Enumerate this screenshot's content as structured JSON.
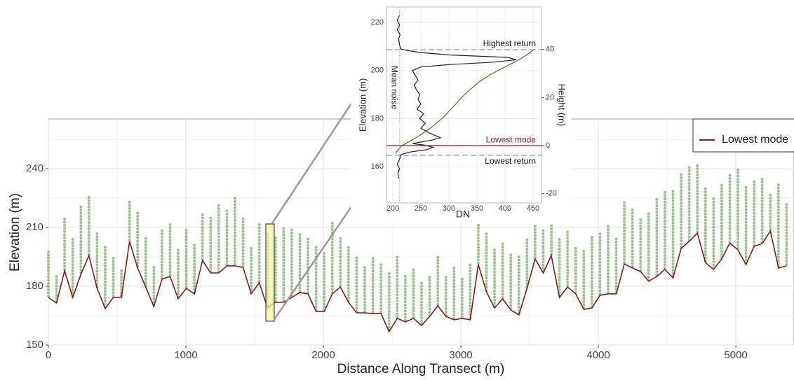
{
  "chart_data": [
    {
      "type": "line",
      "xlabel": "Distance Along Transect (m)",
      "ylabel": "Elevation (m)",
      "xlim": [
        0,
        5423
      ],
      "ylim": [
        150,
        265.4
      ],
      "xticks": [
        0,
        1000,
        2000,
        3000,
        4000,
        5000
      ],
      "yticks": [
        150,
        180,
        210,
        240
      ],
      "grid": true,
      "legend": "upper right",
      "x": [
        0,
        59,
        118,
        177,
        236,
        295,
        354,
        413,
        472,
        531,
        590,
        649,
        708,
        767,
        826,
        885,
        944,
        1003,
        1062,
        1121,
        1180,
        1239,
        1298,
        1357,
        1416,
        1475,
        1534,
        1593,
        1652,
        1711,
        1770,
        1829,
        1888,
        1947,
        2006,
        2065,
        2124,
        2183,
        2242,
        2301,
        2360,
        2419,
        2478,
        2537,
        2596,
        2655,
        2714,
        2773,
        2832,
        2891,
        2950,
        3009,
        3068,
        3127,
        3186,
        3245,
        3304,
        3363,
        3422,
        3481,
        3540,
        3599,
        3658,
        3717,
        3776,
        3835,
        3894,
        3953,
        4012,
        4071,
        4130,
        4189,
        4248,
        4307,
        4366,
        4425,
        4484,
        4543,
        4602,
        4661,
        4720,
        4779,
        4838,
        4897,
        4956,
        5015,
        5074,
        5133,
        5192,
        5251,
        5310,
        5369
      ],
      "series": [
        {
          "name": "Lowest mode",
          "color": "#7b1e22",
          "values": [
            174.3,
            171.4,
            187.9,
            174.3,
            186.1,
            195.7,
            178.9,
            168.6,
            174.3,
            174.3,
            202.9,
            189.3,
            179.6,
            169.6,
            183.6,
            185,
            173.6,
            178.9,
            176.1,
            193.2,
            186.8,
            186.8,
            190.4,
            190.4,
            189.6,
            176.1,
            181.8,
            168.9,
            171.8,
            171.8,
            174.3,
            176.8,
            176.1,
            167.1,
            167.1,
            176.1,
            179.6,
            171.8,
            166.4,
            166.4,
            166.1,
            166.1,
            156.8,
            163.6,
            161.8,
            163.6,
            160,
            164.6,
            170,
            164.6,
            162.9,
            163.6,
            162.9,
            191.1,
            177.1,
            168.9,
            173.6,
            167.9,
            165.4,
            178.9,
            193.9,
            186.8,
            195.7,
            174.3,
            179.6,
            176.1,
            168.2,
            168.9,
            175.4,
            176.1,
            176.1,
            191.4,
            189.3,
            187.5,
            182.5,
            185,
            188.6,
            184.3,
            199.3,
            202.9,
            207.1,
            192.1,
            188.6,
            193.9,
            202.1,
            198.6,
            191.1,
            200.4,
            201.8,
            208.2,
            189.3,
            190.4
          ]
        }
      ],
      "returns": {
        "color": "#4f8a38",
        "top": [
          198,
          185,
          215,
          205,
          222,
          226,
          208,
          200,
          195,
          188,
          224,
          218,
          205,
          190,
          210,
          212,
          200,
          210,
          202,
          218,
          215,
          222,
          220,
          225,
          216,
          200,
          212,
          208,
          205,
          210,
          210,
          208,
          205,
          200,
          198,
          213,
          205,
          200,
          195,
          190,
          195,
          192,
          188,
          196,
          186,
          190,
          182,
          185,
          195,
          186,
          190,
          184,
          192,
          212,
          208,
          200,
          202,
          196,
          196,
          205,
          212,
          210,
          212,
          205,
          208,
          200,
          198,
          206,
          208,
          212,
          205,
          224,
          220,
          215,
          218,
          225,
          228,
          230,
          238,
          242,
          243,
          230,
          226,
          232,
          238,
          240,
          232,
          234,
          236,
          228,
          232,
          222
        ]
      }
    },
    {
      "type": "profile",
      "xlabel": "DN",
      "ylabel": "Elevation (m)",
      "y2label": "Height (m)",
      "xlim": [
        188.75,
        465
      ],
      "ylim": [
        144.8,
        226.5
      ],
      "y2lim": [
        -23.9,
        57.7
      ],
      "xticks": [
        200,
        250,
        300,
        350,
        400,
        450
      ],
      "yticks": [
        160,
        180,
        200,
        220
      ],
      "y2ticks": [
        -20,
        0,
        20,
        40
      ],
      "grid": true,
      "lines": [
        {
          "color": "#222222",
          "x": [
            212,
            208,
            212,
            208,
            213,
            210,
            212,
            214,
            222,
            250,
            300,
            405,
            420,
            380,
            300,
            250,
            235,
            240,
            245,
            238,
            242,
            248,
            245,
            250,
            243,
            255,
            248,
            258,
            250,
            265,
            285,
            270,
            245,
            235,
            255,
            272,
            260,
            230,
            215,
            212,
            208,
            212,
            209,
            211
          ],
          "y": [
            223,
            221,
            219,
            217,
            215,
            213,
            211,
            209,
            208.5,
            207.5,
            206.5,
            205.5,
            204.5,
            203.5,
            202.5,
            201.5,
            200,
            198,
            196,
            194,
            192,
            190,
            188,
            186,
            184,
            182,
            180,
            178,
            176,
            174,
            172,
            171,
            170,
            169.5,
            169,
            168,
            167,
            166,
            165,
            163,
            161,
            159,
            157,
            155
          ]
        },
        {
          "color": "#3a7d1e",
          "x": [
            205,
            215,
            245,
            270,
            290,
            310,
            330,
            355,
            375,
            400,
            425,
            445,
            450
          ],
          "y": [
            165.5,
            168.5,
            172.5,
            176.5,
            180.5,
            185.5,
            190.5,
            195.5,
            198.5,
            201.5,
            204.5,
            207.5,
            208.7
          ]
        }
      ],
      "hlines": [
        {
          "label": "Highest return",
          "y": 208.7,
          "color": "#999999",
          "dash": true
        },
        {
          "label": "Lowest mode",
          "y": 168.7,
          "color": "#7b1e22",
          "dash": false
        },
        {
          "label": "Lowest return",
          "y": 164.7,
          "color": "#999999",
          "dash": true
        }
      ],
      "vline": {
        "label": "Mean noise",
        "x": 212
      }
    }
  ]
}
